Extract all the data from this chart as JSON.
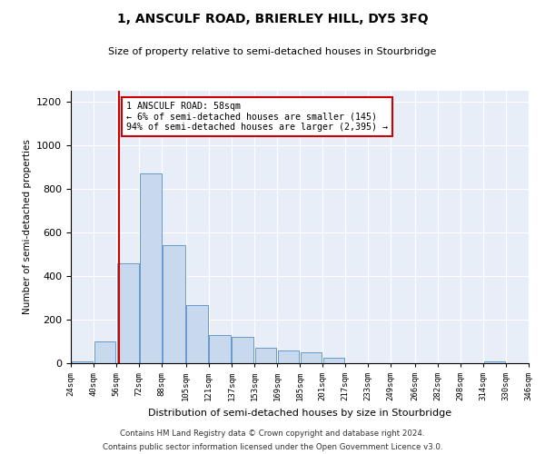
{
  "title": "1, ANSCULF ROAD, BRIERLEY HILL, DY5 3FQ",
  "subtitle": "Size of property relative to semi-detached houses in Stourbridge",
  "xlabel": "Distribution of semi-detached houses by size in Stourbridge",
  "ylabel": "Number of semi-detached properties",
  "footer_line1": "Contains HM Land Registry data © Crown copyright and database right 2024.",
  "footer_line2": "Contains public sector information licensed under the Open Government Licence v3.0.",
  "annotation_title": "1 ANSCULF ROAD: 58sqm",
  "annotation_line1": "← 6% of semi-detached houses are smaller (145)",
  "annotation_line2": "94% of semi-detached houses are larger (2,395) →",
  "property_size": 58,
  "bar_color": "#c8d9ee",
  "bar_edge_color": "#6699cc",
  "vline_color": "#cc0000",
  "annotation_box_color": "#cc0000",
  "background_color": "#e8eef8",
  "bins": [
    24,
    40,
    56,
    72,
    88,
    105,
    121,
    137,
    153,
    169,
    185,
    201,
    217,
    233,
    249,
    266,
    282,
    298,
    314,
    330,
    346
  ],
  "bin_labels": [
    "24sqm",
    "40sqm",
    "56sqm",
    "72sqm",
    "88sqm",
    "105sqm",
    "121sqm",
    "137sqm",
    "153sqm",
    "169sqm",
    "185sqm",
    "201sqm",
    "217sqm",
    "233sqm",
    "249sqm",
    "266sqm",
    "282sqm",
    "298sqm",
    "314sqm",
    "330sqm",
    "346sqm"
  ],
  "bar_heights": [
    10,
    100,
    460,
    870,
    540,
    265,
    130,
    120,
    70,
    60,
    50,
    25,
    0,
    0,
    0,
    0,
    0,
    0,
    10,
    0,
    0
  ],
  "ylim": [
    0,
    1250
  ],
  "yticks": [
    0,
    200,
    400,
    600,
    800,
    1000,
    1200
  ]
}
